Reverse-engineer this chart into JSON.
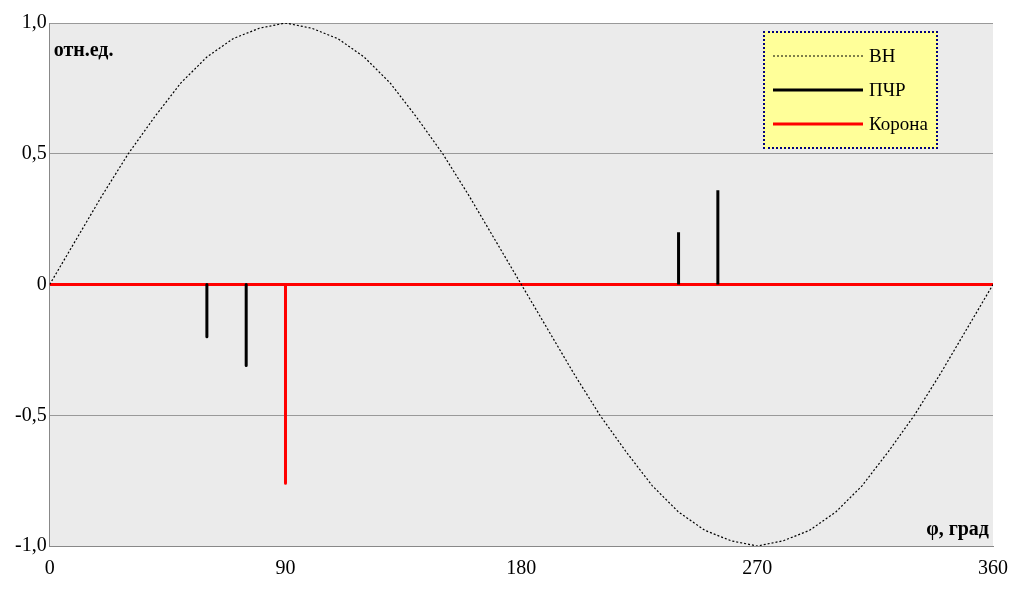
{
  "chart_data": {
    "type": "line",
    "xlabel": "φ, град",
    "ylabel": "отн.ед.",
    "xlim": [
      0,
      360
    ],
    "xticks": [
      0,
      90,
      180,
      270,
      360
    ],
    "ylim": [
      -1,
      1
    ],
    "yticks": [
      {
        "value": -1,
        "label": "-1,0"
      },
      {
        "value": -0.5,
        "label": "-0,5"
      },
      {
        "value": 0,
        "label": "0"
      },
      {
        "value": 0.5,
        "label": "0,5"
      },
      {
        "value": 1,
        "label": "1,0"
      }
    ],
    "grid": "y",
    "legend": "top right",
    "series": [
      {
        "name": "ВН",
        "color": "#000000",
        "line_style": "dotted",
        "x": [
          0,
          10,
          20,
          30,
          40,
          50,
          60,
          70,
          80,
          90,
          100,
          110,
          120,
          130,
          140,
          150,
          160,
          170,
          180,
          190,
          200,
          210,
          220,
          230,
          240,
          250,
          260,
          270,
          280,
          290,
          300,
          310,
          320,
          330,
          340,
          350,
          360
        ],
        "values": [
          0,
          0.17,
          0.34,
          0.5,
          0.64,
          0.77,
          0.87,
          0.94,
          0.98,
          1,
          0.98,
          0.94,
          0.87,
          0.77,
          0.64,
          0.5,
          0.34,
          0.17,
          0,
          -0.17,
          -0.34,
          -0.5,
          -0.64,
          -0.77,
          -0.87,
          -0.94,
          -0.98,
          -1,
          -0.98,
          -0.94,
          -0.87,
          -0.77,
          -0.64,
          -0.5,
          -0.34,
          -0.17,
          0
        ]
      },
      {
        "name": "ПЧР",
        "color": "#000000",
        "line_style": "solid",
        "x": [
          60,
          60
        ],
        "values": [
          0,
          -0.2
        ]
      },
      {
        "color": "#000000",
        "line_style": "solid",
        "x": [
          75,
          75
        ],
        "values": [
          0,
          -0.31
        ]
      },
      {
        "color": "#000000",
        "line_style": "solid",
        "x": [
          240,
          240
        ],
        "values": [
          0,
          0.2
        ]
      },
      {
        "color": "#000000",
        "line_style": "solid",
        "x": [
          255,
          255
        ],
        "values": [
          0,
          0.36
        ]
      },
      {
        "name": "Корона",
        "color": "#ff0000",
        "line_style": "solid",
        "x": [
          0,
          90,
          90,
          90,
          360
        ],
        "values": [
          0,
          0,
          -0.76,
          0,
          0
        ]
      }
    ]
  }
}
